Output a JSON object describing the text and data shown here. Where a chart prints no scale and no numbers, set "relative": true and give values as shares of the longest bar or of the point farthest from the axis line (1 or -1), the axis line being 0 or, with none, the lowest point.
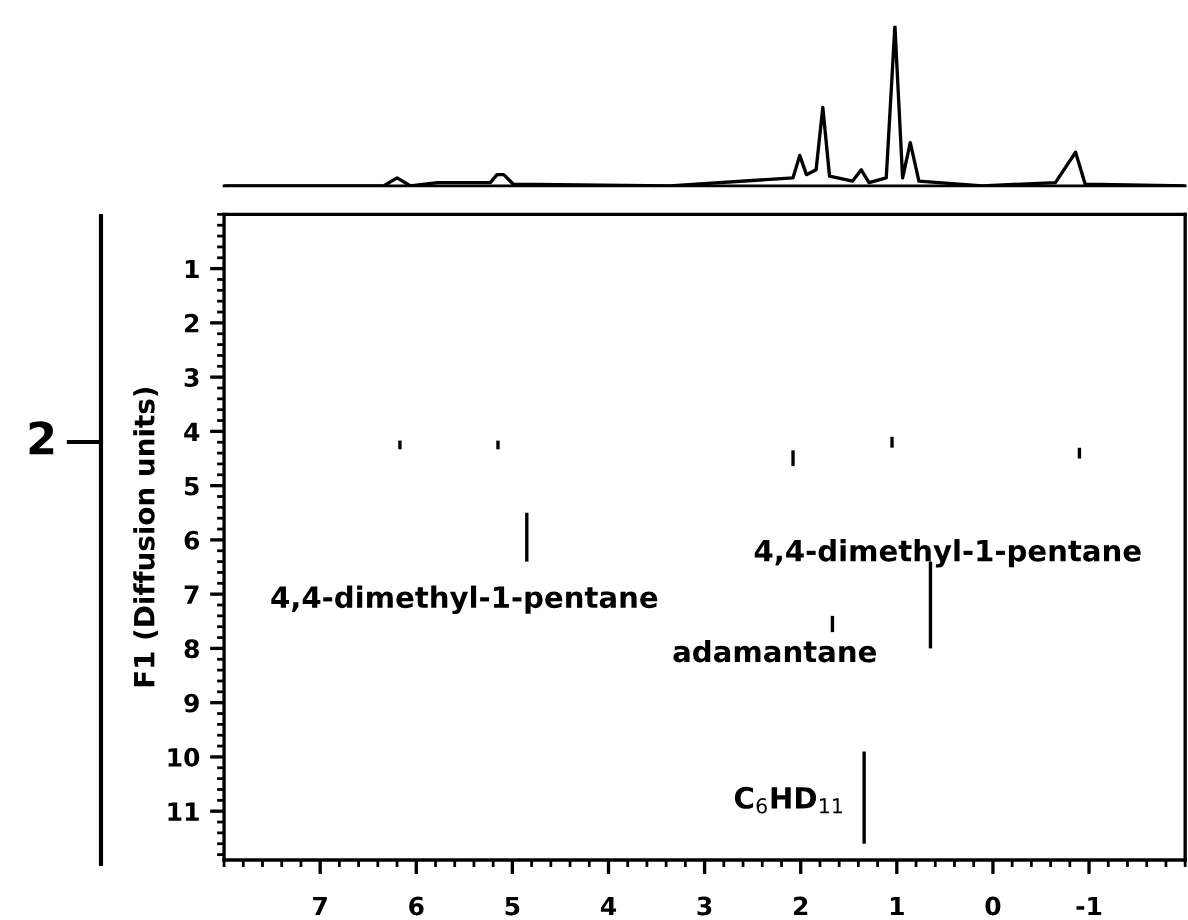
{
  "chart_data": [
    {
      "type": "line",
      "relative": true,
      "tick_labels": false,
      "xlim": [
        8,
        -2
      ],
      "color": "#000000",
      "x": [
        7.98,
        6.34,
        6.2,
        6.06,
        5.78,
        5.23,
        5.16,
        5.09,
        4.99,
        3.36,
        2.08,
        2.01,
        1.94,
        1.84,
        1.77,
        1.7,
        1.46,
        1.37,
        1.29,
        1.11,
        1.02,
        0.94,
        0.86,
        0.77,
        0.11,
        -0.65,
        -0.86,
        -0.96,
        -2.0
      ],
      "values": [
        0,
        0,
        0.05,
        0,
        0.02,
        0.02,
        0.07,
        0.07,
        0.01,
        0,
        0.05,
        0.19,
        0.07,
        0.1,
        0.49,
        0.06,
        0.03,
        0.1,
        0.02,
        0.05,
        1.0,
        0.05,
        0.27,
        0.03,
        0,
        0.02,
        0.21,
        0.01,
        0
      ]
    },
    {
      "type": "bar",
      "ylabel": "F1 (Diffusion units)",
      "color": "#000000",
      "x": [
        6.17,
        5.15,
        4.85,
        2.08,
        1.67,
        1.34,
        1.05,
        0.65,
        -0.9
      ],
      "base": [
        4.17,
        4.17,
        5.5,
        4.35,
        7.4,
        9.9,
        4.1,
        6.4,
        4.3
      ],
      "values": [
        0.16,
        0.16,
        0.9,
        0.29,
        0.3,
        1.7,
        0.2,
        1.6,
        0.2
      ],
      "xlim": [
        8,
        -2
      ],
      "xticks": [
        7,
        6,
        5,
        4,
        3,
        2,
        1,
        0,
        -1
      ],
      "ylim": [
        11.9,
        0
      ],
      "yticks": [
        1,
        2,
        3,
        4,
        5,
        6,
        7,
        8,
        9,
        10,
        11
      ],
      "annotations": [
        "4,4-dimethyl-1-pentane",
        "4,4-dimethyl-1-pentane",
        "adamantane",
        "C$_{6}$HD$_{11}$",
        "2"
      ]
    }
  ]
}
